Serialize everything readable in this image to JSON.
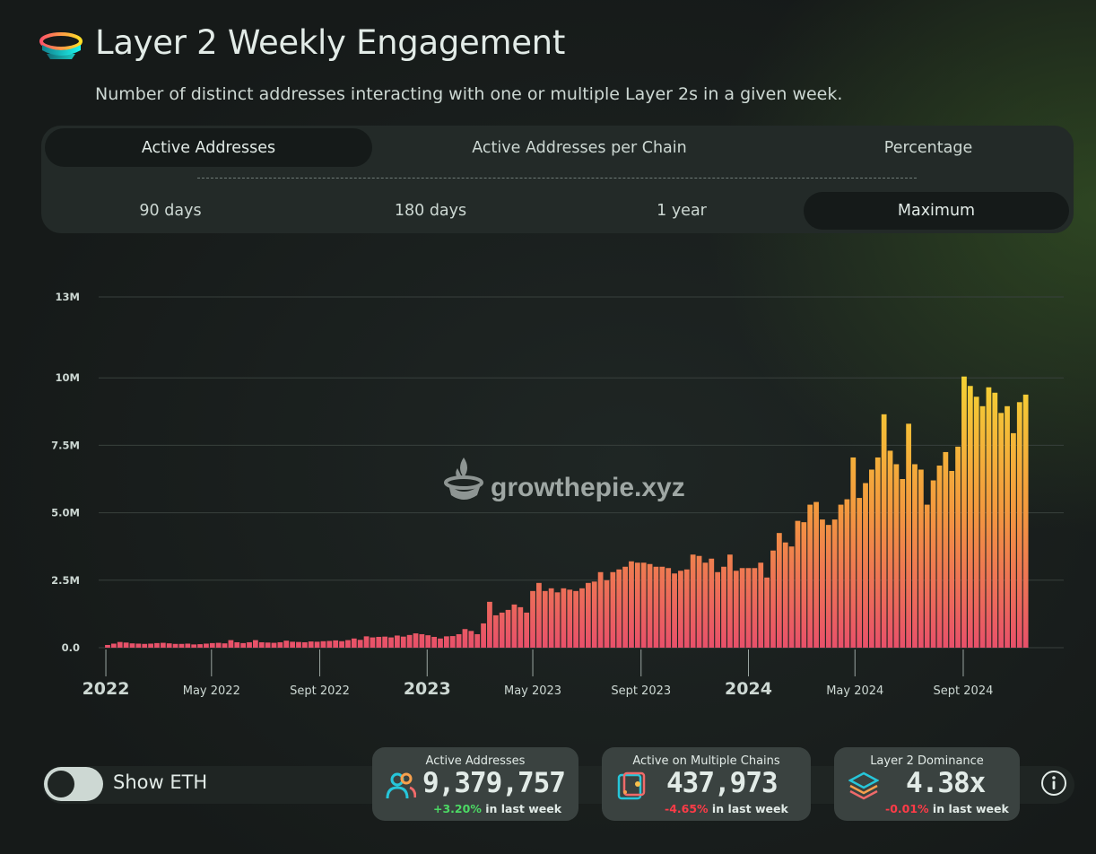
{
  "header": {
    "title": "Layer 2 Weekly Engagement",
    "subtitle": "Number of distinct addresses interacting with one or multiple Layer 2s in a given week."
  },
  "tabs": [
    {
      "label": "Active Addresses",
      "active": true
    },
    {
      "label": "Active Addresses per Chain",
      "active": false
    },
    {
      "label": "Percentage",
      "active": false
    }
  ],
  "ranges": [
    {
      "label": "90 days",
      "active": false
    },
    {
      "label": "180 days",
      "active": false
    },
    {
      "label": "1 year",
      "active": false
    },
    {
      "label": "Maximum",
      "active": true
    }
  ],
  "watermark": "growthepie.xyz",
  "chart_data": {
    "type": "bar",
    "title": "",
    "xlabel": "",
    "ylabel": "",
    "ylim": [
      0,
      13000000
    ],
    "yticks": [
      0,
      2500000,
      5000000,
      7500000,
      10000000,
      13000000
    ],
    "ytick_labels": [
      "0.0",
      "2.5M",
      "5.0M",
      "7.5M",
      "10M",
      "13M"
    ],
    "xticks": [
      {
        "label": "2022",
        "date": "2022-01-01",
        "major": true
      },
      {
        "label": "May 2022",
        "date": "2022-05-01",
        "major": false
      },
      {
        "label": "Sept 2022",
        "date": "2022-09-01",
        "major": false
      },
      {
        "label": "2023",
        "date": "2023-01-01",
        "major": true
      },
      {
        "label": "May 2023",
        "date": "2023-05-01",
        "major": false
      },
      {
        "label": "Sept 2023",
        "date": "2023-09-01",
        "major": false
      },
      {
        "label": "2024",
        "date": "2024-01-01",
        "major": true
      },
      {
        "label": "May 2024",
        "date": "2024-05-01",
        "major": false
      },
      {
        "label": "Sept 2024",
        "date": "2024-09-01",
        "major": false
      }
    ],
    "grid": true,
    "colors": {
      "bar_top": "#f5d633",
      "bar_mid": "#f39a3e",
      "bar_bottom": "#e8506a"
    },
    "series": [
      {
        "start_week": "2022-01-03",
        "interval_days": 7,
        "values": [
          100000,
          150000,
          210000,
          190000,
          160000,
          150000,
          140000,
          150000,
          170000,
          180000,
          160000,
          140000,
          140000,
          150000,
          120000,
          130000,
          150000,
          170000,
          180000,
          160000,
          280000,
          200000,
          170000,
          200000,
          280000,
          200000,
          190000,
          180000,
          200000,
          260000,
          220000,
          210000,
          200000,
          230000,
          220000,
          240000,
          250000,
          270000,
          240000,
          280000,
          340000,
          290000,
          420000,
          380000,
          400000,
          410000,
          380000,
          450000,
          410000,
          470000,
          530000,
          500000,
          460000,
          400000,
          340000,
          420000,
          430000,
          500000,
          690000,
          620000,
          500000,
          900000,
          1700000,
          1200000,
          1300000,
          1400000,
          1600000,
          1500000,
          1300000,
          2100000,
          2400000,
          2100000,
          2200000,
          2050000,
          2200000,
          2150000,
          2100000,
          2200000,
          2400000,
          2450000,
          2800000,
          2500000,
          2800000,
          2900000,
          3000000,
          3200000,
          3150000,
          3150000,
          3100000,
          3000000,
          3000000,
          2950000,
          2750000,
          2850000,
          2900000,
          3450000,
          3400000,
          3150000,
          3300000,
          2800000,
          3000000,
          3450000,
          2850000,
          2950000,
          2950000,
          2950000,
          3150000,
          2600000,
          3600000,
          4250000,
          3900000,
          3750000,
          4700000,
          4650000,
          5300000,
          5400000,
          4750000,
          4550000,
          4750000,
          5300000,
          5500000,
          7050000,
          5550000,
          6100000,
          6600000,
          7050000,
          8650000,
          7300000,
          6800000,
          6250000,
          8300000,
          6800000,
          6600000,
          5300000,
          6200000,
          6750000,
          7250000,
          6550000,
          7450000,
          10050000,
          9700000,
          9300000,
          8950000,
          9650000,
          9450000,
          8700000,
          8950000,
          7950000,
          9100000,
          9380000
        ]
      }
    ]
  },
  "toggle": {
    "label": "Show ETH",
    "on": false
  },
  "kpis": [
    {
      "title": "Active Addresses",
      "value": "9,379,757",
      "change": "+3.20%",
      "suffix": "in last week",
      "trend": "up",
      "icon": "users-icon"
    },
    {
      "title": "Active on Multiple Chains",
      "value": "437,973",
      "change": "-4.65%",
      "suffix": "in last week",
      "trend": "down",
      "icon": "multichain-wallet-icon"
    },
    {
      "title": "Layer 2 Dominance",
      "value": "4.38x",
      "change": "-0.01%",
      "suffix": "in last week",
      "trend": "down",
      "icon": "layers-icon"
    }
  ],
  "colors": {
    "positive": "#4cd964",
    "negative": "#ff3b47",
    "panel": "#232a28",
    "active_pill": "#151a19",
    "text": "#cdd8d3"
  }
}
